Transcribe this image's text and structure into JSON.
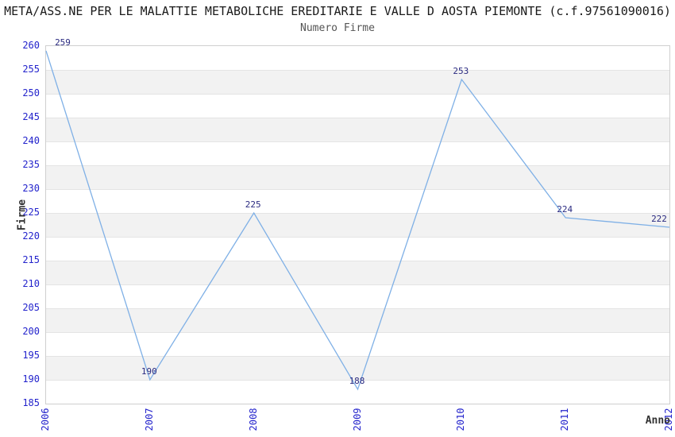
{
  "page": {
    "title": "META/ASS.NE PER LE MALATTIE METABOLICHE EREDITARIE E VALLE D AOSTA PIEMONTE (c.f.97561090016)",
    "subtitle": "Numero Firme"
  },
  "chart_data": {
    "type": "line",
    "title": "Numero Firme",
    "x": [
      "2006",
      "2007",
      "2008",
      "2009",
      "2010",
      "2011",
      "2012"
    ],
    "values": [
      259,
      190,
      225,
      188,
      253,
      224,
      222
    ],
    "xlabel": "Anno",
    "ylabel": "Firme",
    "ylim": [
      185,
      260
    ],
    "ytick_step": 5,
    "grid": true,
    "legend": "none",
    "colors": {
      "line": "#7fb0e6",
      "tick_text": "#2323cc",
      "point_label_text": "#2a2a80",
      "band": "#f2f2f2",
      "gridline": "#e4e4e4",
      "title_text": "#1a1a1a",
      "subtitle_text": "#555555",
      "axis_title_text": "#333333"
    }
  }
}
